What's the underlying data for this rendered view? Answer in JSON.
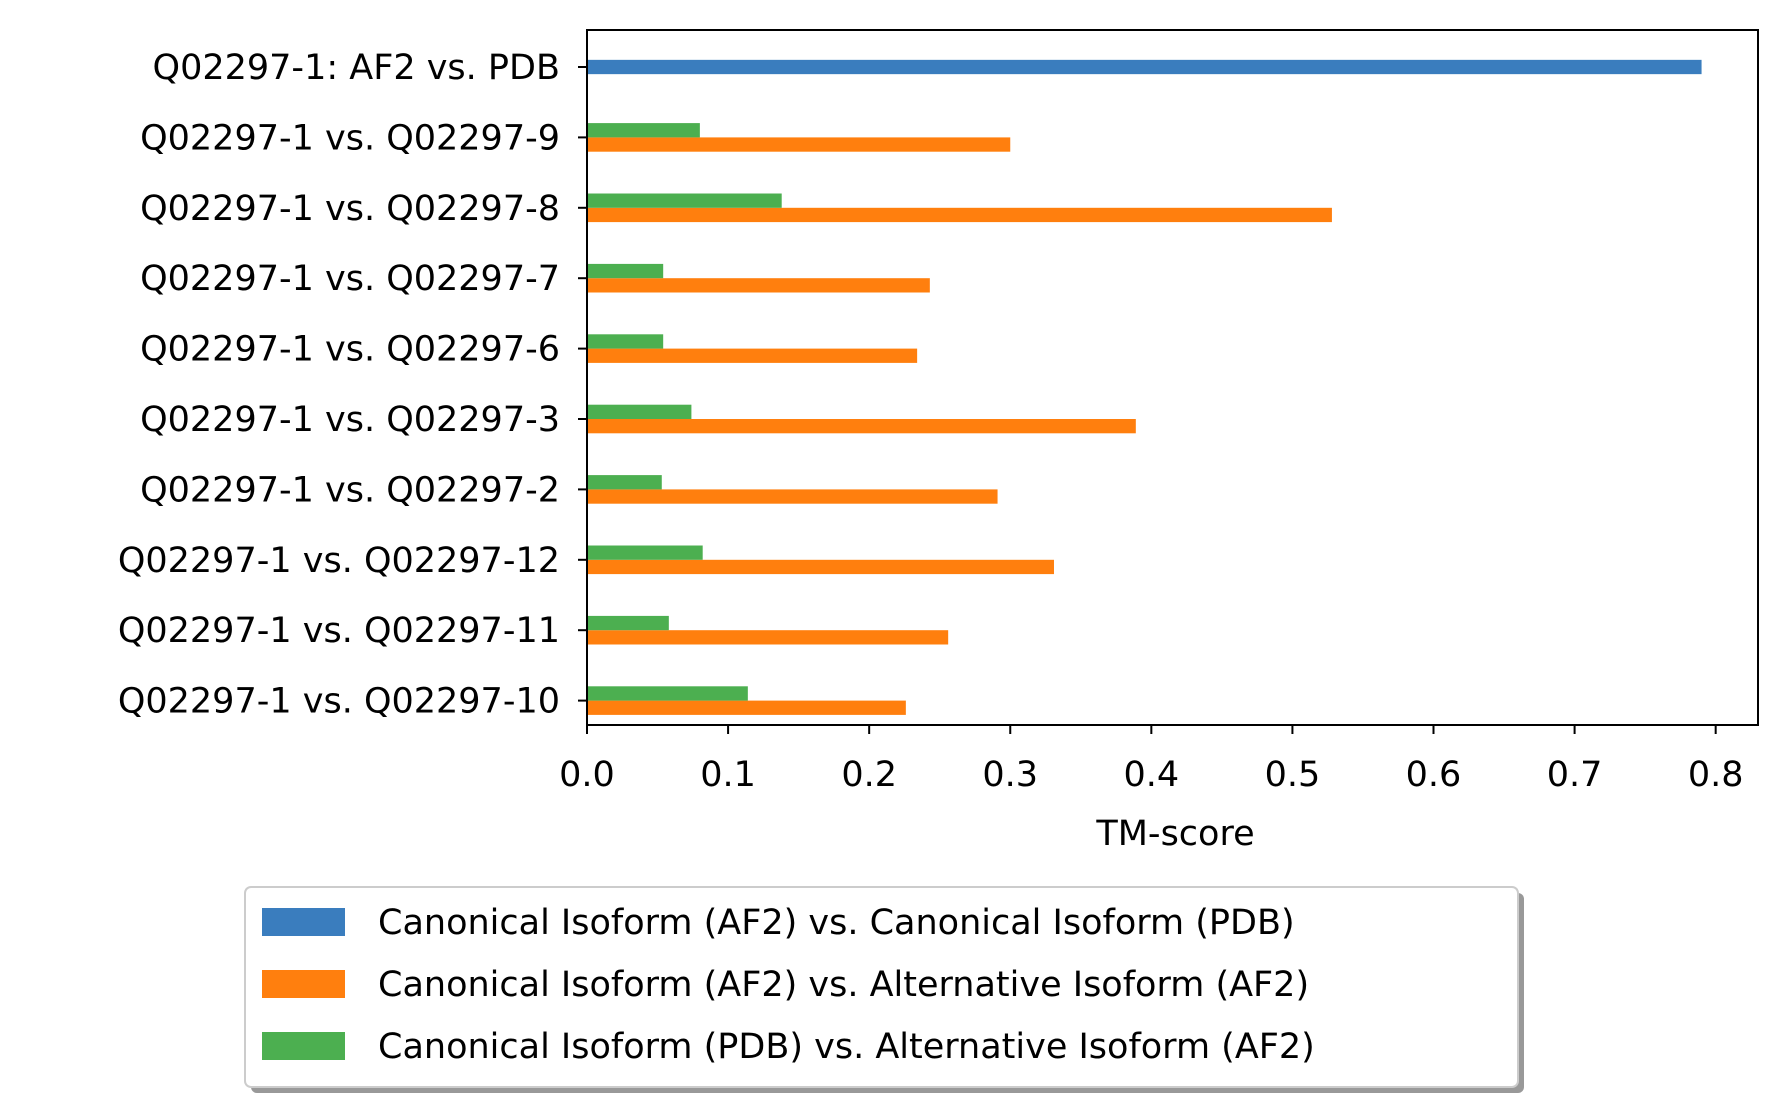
{
  "chart_data": {
    "type": "bar",
    "orientation": "horizontal",
    "title": "",
    "xlabel": "TM-score",
    "ylabel": "",
    "xlim": [
      0.0,
      0.83
    ],
    "xticks": [
      0.0,
      0.1,
      0.2,
      0.3,
      0.4,
      0.5,
      0.6,
      0.7,
      0.8
    ],
    "xtick_labels": [
      "0.0",
      "0.1",
      "0.2",
      "0.3",
      "0.4",
      "0.5",
      "0.6",
      "0.7",
      "0.8"
    ],
    "grid": false,
    "legend_position": "bottom-center",
    "categories": [
      "Q02297-1: AF2 vs. PDB",
      "Q02297-1 vs. Q02297-9",
      "Q02297-1 vs. Q02297-8",
      "Q02297-1 vs. Q02297-7",
      "Q02297-1 vs. Q02297-6",
      "Q02297-1 vs. Q02297-3",
      "Q02297-1 vs. Q02297-2",
      "Q02297-1 vs. Q02297-12",
      "Q02297-1 vs. Q02297-11",
      "Q02297-1 vs. Q02297-10"
    ],
    "series": [
      {
        "name": "Canonical Isoform (AF2) vs. Canonical Isoform (PDB)",
        "color": "#3a7dbe",
        "values": [
          0.79,
          null,
          null,
          null,
          null,
          null,
          null,
          null,
          null,
          null
        ]
      },
      {
        "name": "Canonical Isoform (AF2) vs. Alternative Isoform (AF2)",
        "color": "#ff7f0e",
        "values": [
          null,
          0.3,
          0.528,
          0.243,
          0.234,
          0.389,
          0.291,
          0.331,
          0.256,
          0.226
        ]
      },
      {
        "name": "Canonical Isoform (PDB) vs. Alternative Isoform (AF2)",
        "color": "#4caf50",
        "values": [
          null,
          0.08,
          0.138,
          0.054,
          0.054,
          0.074,
          0.053,
          0.082,
          0.058,
          0.114
        ]
      }
    ]
  }
}
